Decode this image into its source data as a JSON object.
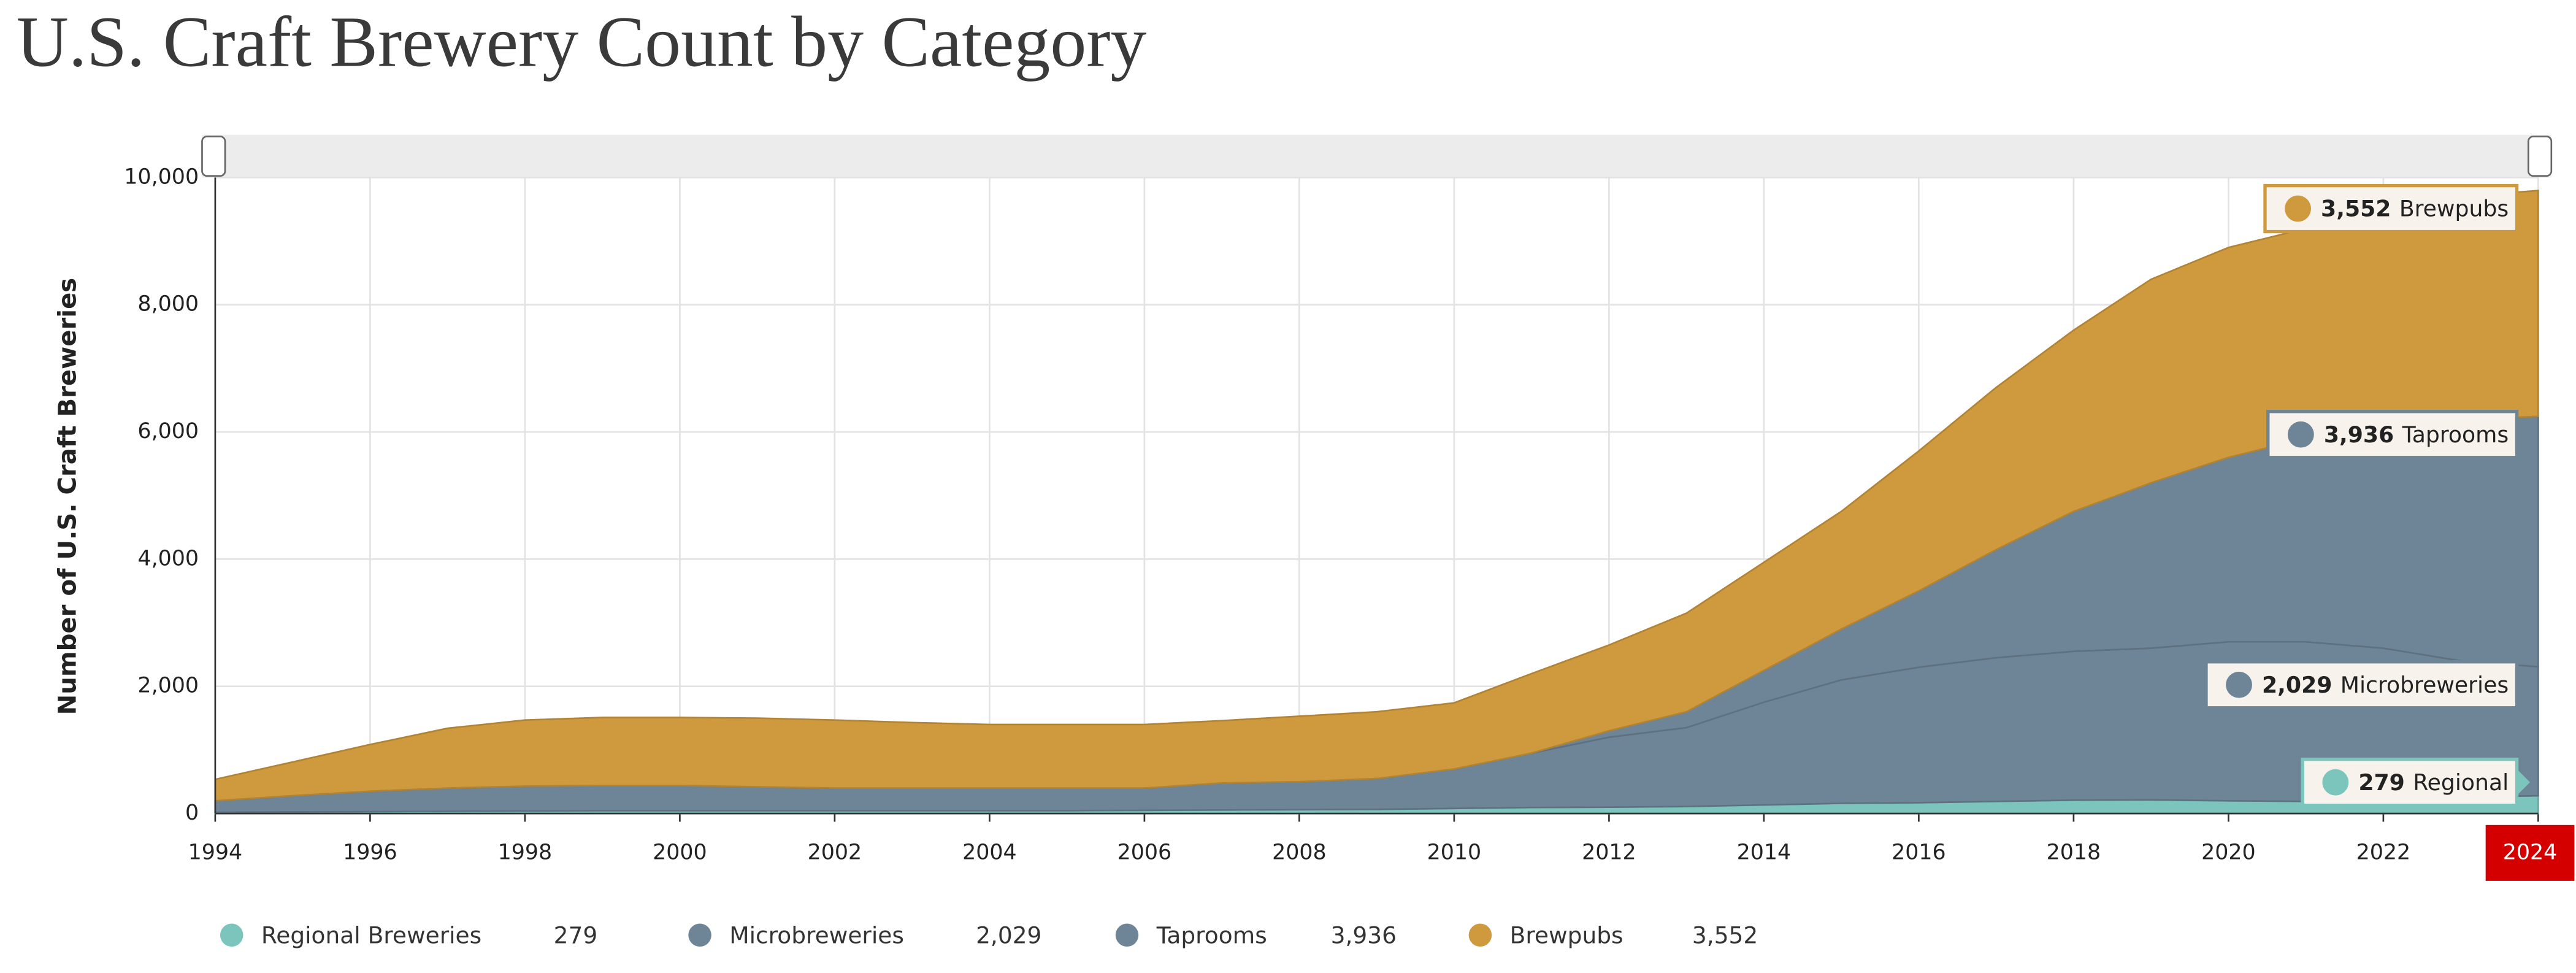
{
  "chart_data": {
    "type": "stacked-area",
    "title": "U.S. Craft Brewery Count by Category",
    "y_label": "Number of U.S. Craft Breweries",
    "x": [
      1994,
      1995,
      1996,
      1997,
      1998,
      1999,
      2000,
      2001,
      2002,
      2003,
      2004,
      2005,
      2006,
      2007,
      2008,
      2009,
      2010,
      2011,
      2012,
      2013,
      2014,
      2015,
      2016,
      2017,
      2018,
      2019,
      2020,
      2021,
      2022,
      2023,
      2024
    ],
    "xlim": [
      1994,
      2024
    ],
    "xticks": [
      1994,
      1996,
      1998,
      2000,
      2002,
      2004,
      2006,
      2008,
      2010,
      2012,
      2014,
      2016,
      2018,
      2020,
      2022,
      2024
    ],
    "ylim": [
      0,
      10000
    ],
    "yticks": [
      0,
      {
        "value": 2000,
        "label": "2,000"
      },
      {
        "value": 4000,
        "label": "4,000"
      },
      {
        "value": 6000,
        "label": "6,000"
      },
      {
        "value": 8000,
        "label": "8,000"
      },
      {
        "value": 10000,
        "label": "10,000"
      }
    ],
    "grid": true,
    "series": [
      {
        "name": "Regional Breweries",
        "callout_name": "Regional",
        "color": "#7cc5bd",
        "values": [
          20,
          25,
          30,
          35,
          40,
          45,
          45,
          45,
          45,
          45,
          45,
          45,
          50,
          55,
          60,
          65,
          80,
          95,
          100,
          110,
          135,
          160,
          170,
          190,
          210,
          215,
          200,
          190,
          230,
          260,
          279
        ],
        "value_labels": [
          null,
          null,
          null,
          null,
          null,
          null,
          null,
          null,
          null,
          null,
          null,
          null,
          null,
          null,
          null,
          null,
          null,
          null,
          null,
          null,
          null,
          null,
          null,
          null,
          null,
          null,
          null,
          null,
          null,
          null,
          "279"
        ]
      },
      {
        "name": "Microbreweries",
        "callout_name": "Microbreweries",
        "color": "#6e8597",
        "values": [
          180,
          255,
          320,
          365,
          390,
          395,
          395,
          375,
          355,
          355,
          355,
          355,
          350,
          425,
          440,
          485,
          620,
          855,
          1100,
          1240,
          1615,
          1940,
          2130,
          2260,
          2340,
          2385,
          2500,
          2510,
          2370,
          2140,
          2029
        ],
        "value_labels": [
          null,
          null,
          null,
          null,
          null,
          null,
          null,
          null,
          null,
          null,
          null,
          null,
          null,
          null,
          null,
          null,
          null,
          null,
          null,
          null,
          null,
          null,
          null,
          null,
          null,
          null,
          null,
          null,
          null,
          null,
          "2,029"
        ]
      },
      {
        "name": "Taprooms",
        "callout_name": "Taprooms",
        "color": "#6e8597",
        "values": [
          0,
          0,
          0,
          0,
          0,
          0,
          0,
          0,
          0,
          0,
          0,
          0,
          0,
          0,
          0,
          0,
          0,
          0,
          100,
          250,
          500,
          800,
          1200,
          1700,
          2200,
          2600,
          2900,
          3200,
          3500,
          3800,
          3936
        ],
        "value_labels": [
          null,
          null,
          null,
          null,
          null,
          null,
          null,
          null,
          null,
          null,
          null,
          null,
          null,
          null,
          null,
          null,
          null,
          null,
          null,
          null,
          null,
          null,
          null,
          null,
          null,
          null,
          null,
          null,
          null,
          null,
          "3,936"
        ]
      },
      {
        "name": "Brewpubs",
        "callout_name": "Brewpubs",
        "color": "#cf9a3e",
        "values": [
          337,
          530,
          735,
          940,
          1040,
          1070,
          1070,
          1080,
          1070,
          1030,
          1000,
          1000,
          1000,
          980,
          1030,
          1050,
          1040,
          1250,
          1350,
          1550,
          1700,
          1850,
          2200,
          2550,
          2850,
          3200,
          3300,
          3300,
          3500,
          3500,
          3552
        ],
        "value_labels": [
          null,
          null,
          null,
          null,
          null,
          null,
          null,
          null,
          null,
          null,
          null,
          null,
          null,
          null,
          null,
          null,
          null,
          null,
          null,
          null,
          null,
          null,
          null,
          null,
          null,
          null,
          null,
          null,
          null,
          null,
          "3,552"
        ]
      }
    ]
  }
}
